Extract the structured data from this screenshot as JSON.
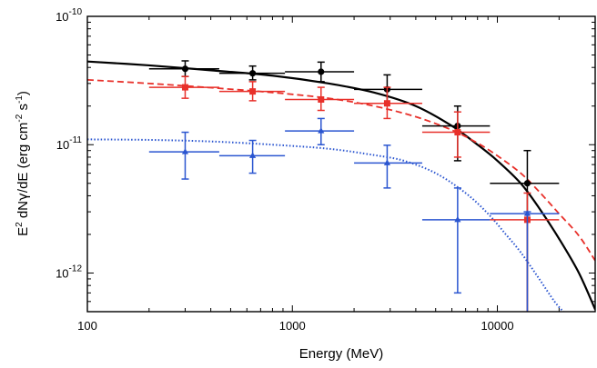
{
  "chart_data": {
    "type": "scatter",
    "title": "",
    "xlabel": "Energy (MeV)",
    "ylabel": {
      "prefix": "E",
      "prefix_exp": "2",
      "mid": " dN",
      "gamma": "γ",
      "mid2": "/dE (erg cm",
      "exp1": "-2",
      "mid3": " s",
      "exp2": "-1",
      "suffix": ")"
    },
    "x_scale": "log",
    "y_scale": "log",
    "xlim": [
      100,
      30000
    ],
    "ylim": [
      5e-13,
      1e-10
    ],
    "x_ticks": [
      {
        "value": 100,
        "label": "100"
      },
      {
        "value": 1000,
        "label": "1000"
      },
      {
        "value": 10000,
        "label": "10000"
      }
    ],
    "y_ticks": [
      {
        "value": 1e-12,
        "base": "10",
        "exp": "-12"
      },
      {
        "value": 1e-11,
        "base": "10",
        "exp": "-11"
      },
      {
        "value": 1e-10,
        "base": "10",
        "exp": "-10"
      }
    ],
    "grid": false,
    "legend": "none",
    "series": [
      {
        "color": "#000000",
        "marker": "circle",
        "points": [
          {
            "x": 300,
            "y": 3.9e-11,
            "xlo": 200,
            "xhi": 440,
            "ylo": 3.4e-11,
            "yhi": 4.5e-11
          },
          {
            "x": 640,
            "y": 3.6e-11,
            "xlo": 440,
            "xhi": 920,
            "ylo": 3.2e-11,
            "yhi": 4.1e-11
          },
          {
            "x": 1380,
            "y": 3.7e-11,
            "xlo": 920,
            "xhi": 2000,
            "ylo": 3.1e-11,
            "yhi": 4.4e-11
          },
          {
            "x": 2900,
            "y": 2.7e-11,
            "xlo": 2000,
            "xhi": 4300,
            "ylo": 2.1e-11,
            "yhi": 3.5e-11
          },
          {
            "x": 6400,
            "y": 1.4e-11,
            "xlo": 4300,
            "xhi": 9200,
            "ylo": 7.5e-12,
            "yhi": 2e-11
          },
          {
            "x": 14000,
            "y": 5e-12,
            "xlo": 9200,
            "xhi": 20000,
            "ylo": 5e-13,
            "yhi": 9e-12
          }
        ]
      },
      {
        "color": "#e8302a",
        "marker": "square",
        "points": [
          {
            "x": 300,
            "y": 2.8e-11,
            "xlo": 200,
            "xhi": 440,
            "ylo": 2.3e-11,
            "yhi": 3.4e-11
          },
          {
            "x": 640,
            "y": 2.6e-11,
            "xlo": 440,
            "xhi": 920,
            "ylo": 2.2e-11,
            "yhi": 3.1e-11
          },
          {
            "x": 1380,
            "y": 2.25e-11,
            "xlo": 920,
            "xhi": 2000,
            "ylo": 1.85e-11,
            "yhi": 2.8e-11
          },
          {
            "x": 2900,
            "y": 2.1e-11,
            "xlo": 2000,
            "xhi": 4300,
            "ylo": 1.6e-11,
            "yhi": 2.8e-11
          },
          {
            "x": 6400,
            "y": 1.25e-11,
            "xlo": 4300,
            "xhi": 9200,
            "ylo": 8e-12,
            "yhi": 1.8e-11
          },
          {
            "x": 14000,
            "y": 2.6e-12,
            "xlo": 9200,
            "xhi": 20000,
            "ylo": 5e-13,
            "yhi": 4.2e-12
          }
        ]
      },
      {
        "color": "#2a55d0",
        "marker": "triangle",
        "points": [
          {
            "x": 300,
            "y": 8.8e-12,
            "xlo": 200,
            "xhi": 440,
            "ylo": 5.4e-12,
            "yhi": 1.25e-11
          },
          {
            "x": 640,
            "y": 8.2e-12,
            "xlo": 440,
            "xhi": 920,
            "ylo": 6e-12,
            "yhi": 1.08e-11
          },
          {
            "x": 1380,
            "y": 1.28e-11,
            "xlo": 920,
            "xhi": 2000,
            "ylo": 1e-11,
            "yhi": 1.6e-11
          },
          {
            "x": 2900,
            "y": 7.2e-12,
            "xlo": 2000,
            "xhi": 4300,
            "ylo": 4.6e-12,
            "yhi": 9.9e-12
          },
          {
            "x": 6400,
            "y": 2.6e-12,
            "xlo": 4300,
            "xhi": 9200,
            "ylo": 7e-13,
            "yhi": 4.6e-12
          },
          {
            "x": 14000,
            "y": 2.9e-12,
            "xlo": 9200,
            "xhi": 20000,
            "ylo": 5e-13,
            "yhi": 3e-12
          }
        ]
      }
    ],
    "curves": [
      {
        "color": "#000000",
        "style": "solid",
        "points": [
          [
            100,
            4.45e-11
          ],
          [
            200,
            4.15e-11
          ],
          [
            400,
            3.8e-11
          ],
          [
            800,
            3.45e-11
          ],
          [
            1500,
            3e-11
          ],
          [
            2500,
            2.55e-11
          ],
          [
            4000,
            2e-11
          ],
          [
            6000,
            1.4e-11
          ],
          [
            8000,
            1e-11
          ],
          [
            10000,
            7.5e-12
          ],
          [
            13000,
            5e-12
          ],
          [
            16000,
            3.2e-12
          ],
          [
            20000,
            1.85e-12
          ],
          [
            25000,
            1e-12
          ],
          [
            30000,
            5.2e-13
          ]
        ]
      },
      {
        "color": "#e8302a",
        "style": "dashed",
        "points": [
          [
            100,
            3.2e-11
          ],
          [
            200,
            3e-11
          ],
          [
            400,
            2.78e-11
          ],
          [
            800,
            2.55e-11
          ],
          [
            1500,
            2.3e-11
          ],
          [
            2500,
            2e-11
          ],
          [
            4000,
            1.65e-11
          ],
          [
            6000,
            1.3e-11
          ],
          [
            8000,
            1.03e-11
          ],
          [
            10000,
            8.2e-12
          ],
          [
            13000,
            6e-12
          ],
          [
            16000,
            4.3e-12
          ],
          [
            20000,
            2.9e-12
          ],
          [
            25000,
            1.95e-12
          ],
          [
            30000,
            1.25e-12
          ]
        ]
      },
      {
        "color": "#2a55d0",
        "style": "dotted",
        "points": [
          [
            100,
            1.1e-11
          ],
          [
            200,
            1.09e-11
          ],
          [
            400,
            1.06e-11
          ],
          [
            800,
            1e-11
          ],
          [
            1500,
            9.3e-12
          ],
          [
            2500,
            8.3e-12
          ],
          [
            3500,
            7.5e-12
          ],
          [
            5000,
            6e-12
          ],
          [
            7000,
            4.2e-12
          ],
          [
            9000,
            2.9e-12
          ],
          [
            11000,
            2e-12
          ],
          [
            13000,
            1.45e-12
          ],
          [
            16000,
            9e-13
          ],
          [
            19000,
            6e-13
          ],
          [
            21000,
            5e-13
          ]
        ]
      }
    ]
  }
}
